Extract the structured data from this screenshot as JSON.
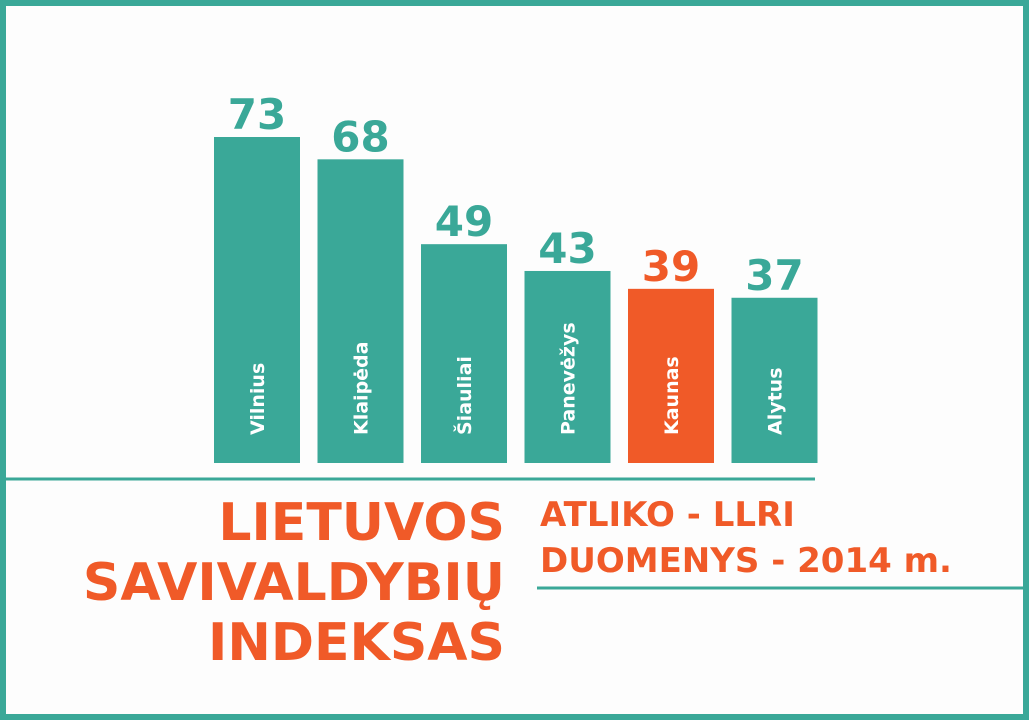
{
  "chart_data": {
    "type": "bar",
    "title": [
      "LIETUVOS",
      "SAVIVALDYBIŲ",
      "INDEKSAS"
    ],
    "subtitle": [
      "ATLIKO - LLRI",
      "DUOMENYS - 2014 m."
    ],
    "categories": [
      "Vilnius",
      "Klaipėda",
      "Šiauliai",
      "Panevėžys",
      "Kaunas",
      "Alytus"
    ],
    "values": [
      73,
      68,
      49,
      43,
      39,
      37
    ],
    "colors": [
      "#3aa898",
      "#3aa898",
      "#3aa898",
      "#3aa898",
      "#f05a28",
      "#3aa898"
    ],
    "title_color": "#f05a28"
  }
}
